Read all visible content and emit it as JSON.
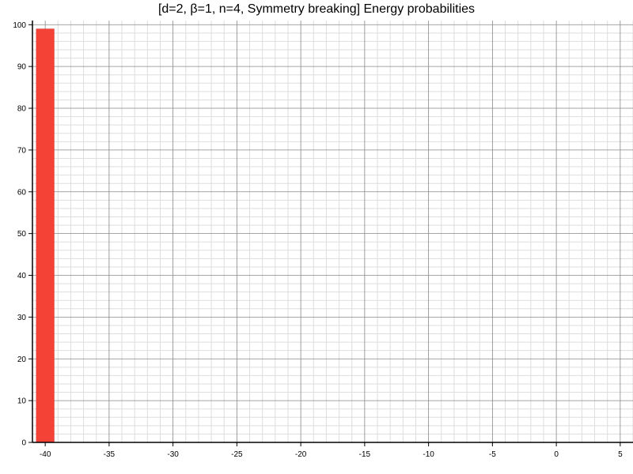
{
  "chart_data": {
    "type": "bar",
    "title": "[d=2, β=1, n=4, Symmetry breaking] Energy probabilities",
    "xlabel": "",
    "ylabel": "",
    "xlim": [
      -41,
      6
    ],
    "ylim": [
      0,
      101
    ],
    "x_ticks": [
      -40,
      -35,
      -30,
      -25,
      -20,
      -15,
      -10,
      -5,
      0,
      5
    ],
    "y_ticks": [
      0,
      10,
      20,
      30,
      40,
      50,
      60,
      70,
      80,
      90,
      100
    ],
    "grid": true,
    "bars": [
      {
        "x_start": -40.7,
        "x_end": -39.3,
        "value": 99
      }
    ],
    "colors": {
      "bar": "#f44336",
      "grid_major": "#888888",
      "grid_minor": "#dddddd",
      "axis": "#000000"
    }
  }
}
